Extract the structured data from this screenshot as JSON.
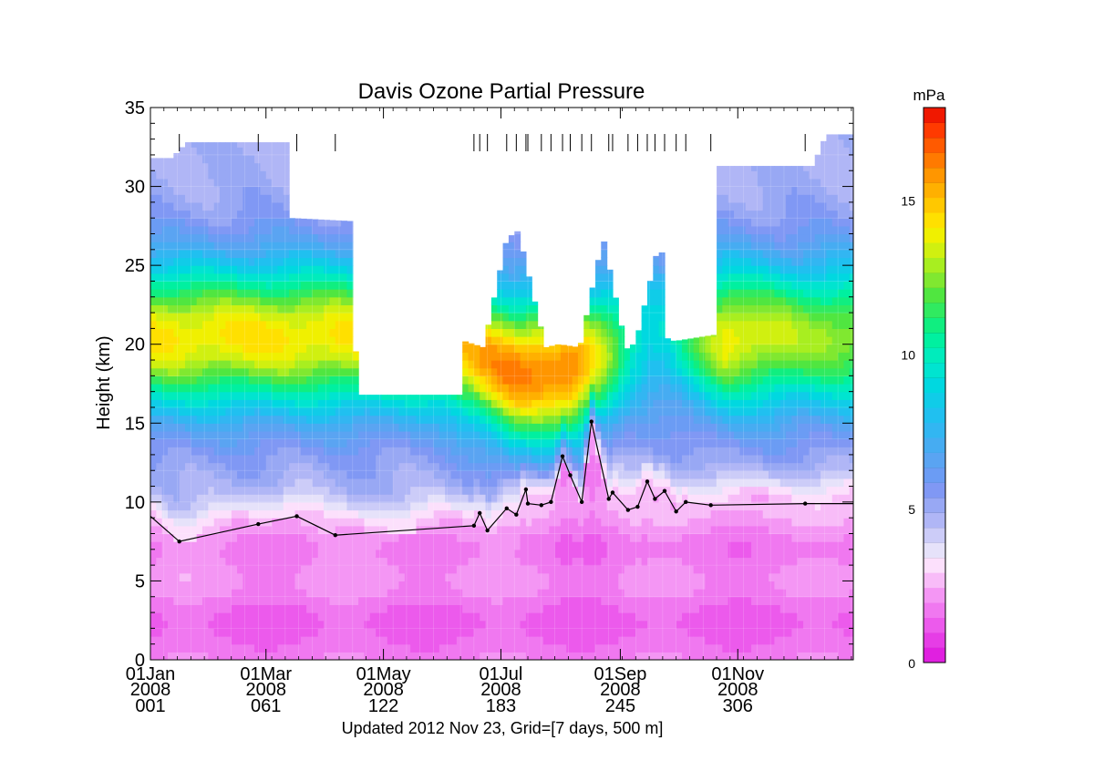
{
  "chart_data": {
    "type": "heatmap",
    "title": "Davis Ozone Partial Pressure",
    "ylabel": "Height (km)",
    "xlabel": "",
    "footer": "Updated 2012 Nov 23, Grid=[7 days, 500 m]",
    "ylim": [
      0,
      35
    ],
    "xlim_day_of_year": [
      1,
      366
    ],
    "y_ticks": [
      0,
      5,
      10,
      15,
      20,
      25,
      30,
      35
    ],
    "x_ticks": [
      {
        "day": 1,
        "label": "01Jan",
        "year": "2008",
        "doy": "001"
      },
      {
        "day": 61,
        "label": "01Mar",
        "year": "2008",
        "doy": "061"
      },
      {
        "day": 122,
        "label": "01May",
        "year": "2008",
        "doy": "122"
      },
      {
        "day": 183,
        "label": "01Jul",
        "year": "2008",
        "doy": "183"
      },
      {
        "day": 245,
        "label": "01Sep",
        "year": "2008",
        "doy": "245"
      },
      {
        "day": 306,
        "label": "01Nov",
        "year": "2008",
        "doy": "306"
      }
    ],
    "colorbar": {
      "unit": "mPa",
      "min": 0,
      "max": 18,
      "ticks": [
        0,
        5,
        10,
        15
      ],
      "levels": [
        "#e020e0",
        "#e63de6",
        "#ec5aec",
        "#f078f0",
        "#f496f4",
        "#f8bcf8",
        "#fce0fc",
        "#e6e2fa",
        "#ccccf8",
        "#b0b6f6",
        "#98a8f4",
        "#8098f4",
        "#6b9cf4",
        "#5aa4f2",
        "#46acf2",
        "#32b6f2",
        "#20c0f0",
        "#10cce8",
        "#00d8e0",
        "#00e4d0",
        "#00ecbc",
        "#00f0a0",
        "#10ee80",
        "#30ea60",
        "#50e640",
        "#80e830",
        "#a8ee20",
        "#d0f010",
        "#f0f000",
        "#ffe000",
        "#ffc800",
        "#ffb000",
        "#ff9600",
        "#ff7a00",
        "#ff5a00",
        "#ff3a00",
        "#f01800"
      ]
    },
    "sounding_days": [
      16,
      57,
      77,
      97,
      169,
      172,
      176,
      186,
      191,
      196,
      197,
      204,
      209,
      215,
      219,
      225,
      230,
      239,
      241,
      249,
      254,
      259,
      263,
      268,
      274,
      279,
      292,
      341
    ],
    "tropopause": {
      "days": [
        1,
        16,
        57,
        77,
        97,
        169,
        172,
        176,
        186,
        191,
        196,
        197,
        204,
        209,
        215,
        219,
        225,
        230,
        239,
        241,
        249,
        254,
        259,
        263,
        268,
        274,
        279,
        292,
        341,
        366
      ],
      "heights": [
        9.1,
        7.5,
        8.6,
        9.1,
        7.9,
        8.5,
        9.3,
        8.2,
        9.6,
        9.2,
        10.8,
        9.9,
        9.8,
        10.0,
        12.9,
        11.7,
        10.0,
        15.1,
        10.2,
        10.6,
        9.5,
        9.7,
        11.3,
        10.2,
        10.7,
        9.4,
        10.0,
        9.8,
        9.9,
        9.9
      ]
    },
    "data_top_km": {
      "days": [
        1,
        12,
        20,
        72,
        74,
        106,
        108,
        162,
        164,
        174,
        186,
        192,
        206,
        213,
        224,
        236,
        248,
        253,
        266,
        269,
        273,
        294,
        296,
        345,
        352,
        366
      ],
      "heights": [
        31.8,
        31.8,
        32.8,
        32.8,
        28.0,
        27.8,
        16.8,
        16.8,
        20.2,
        19.8,
        26.7,
        27.2,
        19.8,
        20.0,
        19.8,
        26.8,
        19.7,
        20.1,
        26.9,
        20.4,
        20.2,
        20.6,
        31.3,
        31.3,
        33.3,
        33.3
      ]
    }
  }
}
